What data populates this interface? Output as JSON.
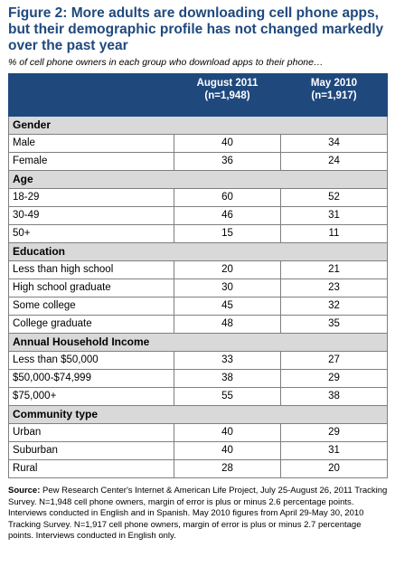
{
  "title": "Figure 2: More adults are downloading cell phone apps, but their demographic profile has not changed markedly over the past year",
  "subtitle": "% of cell phone owners in each group who download apps to their phone…",
  "chart_data": {
    "type": "table",
    "columns": [
      {
        "line1": "August 2011",
        "line2": "(n=1,948)"
      },
      {
        "line1": "May 2010",
        "line2": "(n=1,917)"
      }
    ],
    "groups": [
      {
        "name": "Gender",
        "rows": [
          {
            "label": "Male",
            "values": [
              "40",
              "34"
            ]
          },
          {
            "label": "Female",
            "values": [
              "36",
              "24"
            ]
          }
        ]
      },
      {
        "name": "Age",
        "rows": [
          {
            "label": "18-29",
            "values": [
              "60",
              "52"
            ]
          },
          {
            "label": "30-49",
            "values": [
              "46",
              "31"
            ]
          },
          {
            "label": "50+",
            "values": [
              "15",
              "11"
            ]
          }
        ]
      },
      {
        "name": "Education",
        "rows": [
          {
            "label": "Less than high school",
            "values": [
              "20",
              "21"
            ]
          },
          {
            "label": "High school graduate",
            "values": [
              "30",
              "23"
            ]
          },
          {
            "label": "Some college",
            "values": [
              "45",
              "32"
            ]
          },
          {
            "label": "College graduate",
            "values": [
              "48",
              "35"
            ]
          }
        ]
      },
      {
        "name": "Annual Household Income",
        "rows": [
          {
            "label": "Less than $50,000",
            "values": [
              "33",
              "27"
            ]
          },
          {
            "label": "$50,000-$74,999",
            "values": [
              "38",
              "29"
            ]
          },
          {
            "label": "$75,000+",
            "values": [
              "55",
              "38"
            ]
          }
        ]
      },
      {
        "name": "Community type",
        "rows": [
          {
            "label": "Urban",
            "values": [
              "40",
              "29"
            ]
          },
          {
            "label": "Suburban",
            "values": [
              "40",
              "31"
            ]
          },
          {
            "label": "Rural",
            "values": [
              "28",
              "20"
            ]
          }
        ]
      }
    ]
  },
  "source": {
    "label": "Source:",
    "text": "Pew Research Center's Internet & American Life Project, July 25-August 26, 2011 Tracking Survey. N=1,948 cell phone owners, margin of error is plus or minus 2.6 percentage points. Interviews conducted in English and in Spanish. May 2010 figures from April 29-May 30, 2010 Tracking Survey. N=1,917 cell phone owners, margin of error is plus or minus 2.7 percentage points. Interviews conducted in English only."
  },
  "colors": {
    "header_bg": "#1f497d",
    "title_text": "#1f497d",
    "group_bg": "#d9d9d9"
  }
}
